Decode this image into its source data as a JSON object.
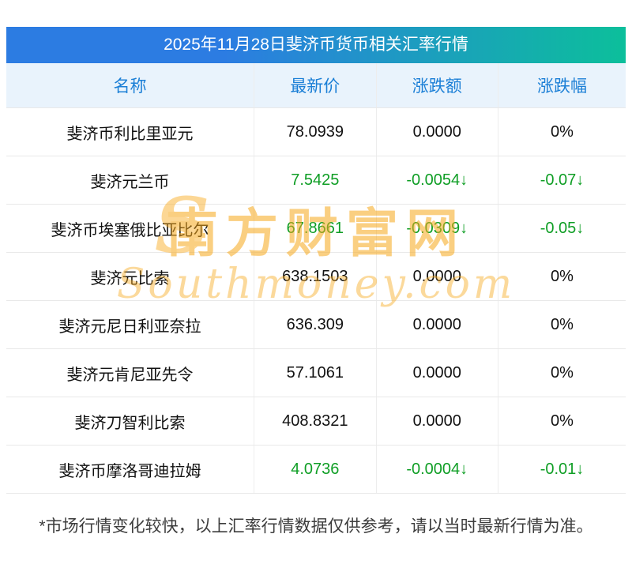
{
  "title": "2025年11月28日斐济币货币相关汇率行情",
  "table": {
    "headers": [
      "名称",
      "最新价",
      "涨跌额",
      "涨跌幅"
    ],
    "rows": [
      {
        "name": "斐济币利比里亚元",
        "price": "78.0939",
        "change": "0.0000",
        "pct": "0%",
        "trend": "flat"
      },
      {
        "name": "斐济元兰币",
        "price": "7.5425",
        "change": "-0.0054↓",
        "pct": "-0.07↓",
        "trend": "down"
      },
      {
        "name": "斐济币埃塞俄比亚比尔",
        "price": "67.8661",
        "change": "-0.0309↓",
        "pct": "-0.05↓",
        "trend": "down"
      },
      {
        "name": "斐济元比索",
        "price": "638.1503",
        "change": "0.0000",
        "pct": "0%",
        "trend": "flat"
      },
      {
        "name": "斐济元尼日利亚奈拉",
        "price": "636.309",
        "change": "0.0000",
        "pct": "0%",
        "trend": "flat"
      },
      {
        "name": "斐济元肯尼亚先令",
        "price": "57.1061",
        "change": "0.0000",
        "pct": "0%",
        "trend": "flat"
      },
      {
        "name": "斐济刀智利比索",
        "price": "408.8321",
        "change": "0.0000",
        "pct": "0%",
        "trend": "flat"
      },
      {
        "name": "斐济币摩洛哥迪拉姆",
        "price": "4.0736",
        "change": "-0.0004↓",
        "pct": "-0.01↓",
        "trend": "down"
      }
    ]
  },
  "watermark": {
    "flame": "S",
    "cn": "南方财富网",
    "en": "Southmoney.com"
  },
  "footnote": "*市场行情变化较快，以上汇率行情数据仅供参考，请以当时最新行情为准。",
  "colors": {
    "title_gradient_start": "#2c7ce2",
    "title_gradient_end": "#0cbf9b",
    "header_bg": "#e9f3fc",
    "header_text": "#1b7fd6",
    "down_green": "#0f9e25",
    "watermark_orange": "#f7a81c"
  }
}
